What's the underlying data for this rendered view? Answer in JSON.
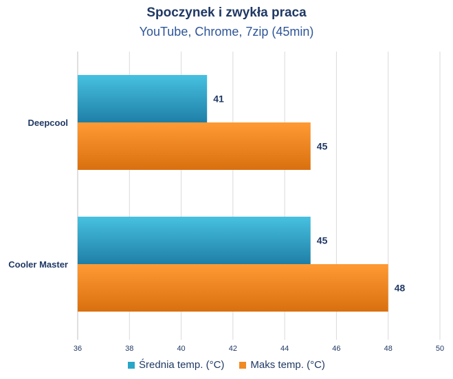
{
  "chart_data": {
    "type": "bar",
    "orientation": "horizontal",
    "title": "Spoczynek i zwykła praca",
    "subtitle": "YouTube, Chrome, 7zip (45min)",
    "categories": [
      "Deepcool",
      "Cooler Master"
    ],
    "series": [
      {
        "name": "Średnia temp. (°C)",
        "values": [
          41,
          45
        ],
        "color": "#2aa6c8"
      },
      {
        "name": "Maks temp. (°C)",
        "values": [
          45,
          48
        ],
        "color": "#f08a22"
      }
    ],
    "xlim": [
      36,
      50
    ],
    "xticks": [
      "36",
      "38",
      "40",
      "42",
      "44",
      "46",
      "48",
      "50"
    ],
    "grid": true,
    "legend_position": "bottom"
  }
}
